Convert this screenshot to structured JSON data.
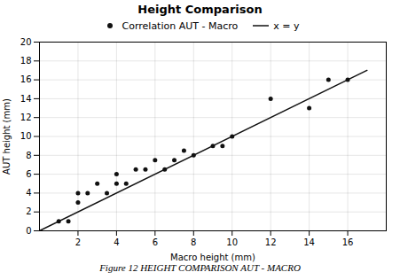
{
  "chart_data": {
    "type": "scatter",
    "title": "Height Comparison",
    "xlabel": "Macro height (mm)",
    "ylabel": "AUT height (mm)",
    "caption": "Figure 12   HEIGHT COMPARISON AUT - MACRO",
    "xlim": [
      0,
      18
    ],
    "ylim": [
      0.0,
      20.0
    ],
    "xticks": [
      2,
      4,
      6,
      8,
      10,
      12,
      14,
      16
    ],
    "yticks": [
      0,
      2,
      4,
      6,
      8,
      10,
      12,
      14,
      16,
      18,
      20
    ],
    "grid": true,
    "legend": "right",
    "series": [
      {
        "name": "Correlation AUT - Macro",
        "type": "scatter",
        "color": "#111111",
        "marker": "circle",
        "x": [
          1.0,
          1.5,
          2.0,
          2.0,
          2.5,
          3.0,
          3.5,
          4.0,
          4.0,
          4.5,
          5.0,
          5.5,
          6.0,
          6.5,
          7.0,
          7.5,
          8.0,
          9.0,
          9.5,
          10.0,
          12.0,
          14.0,
          15.0,
          16.0
        ],
        "values": [
          1.0,
          1.0,
          4.0,
          3.0,
          4.0,
          5.0,
          4.0,
          5.0,
          6.0,
          5.0,
          6.5,
          6.5,
          7.5,
          6.5,
          7.5,
          8.5,
          8.0,
          9.0,
          9.0,
          10.0,
          14.0,
          13.0,
          16.0,
          16.0
        ]
      },
      {
        "name": "x = y",
        "type": "line",
        "color": "#111111",
        "line_style": "solid",
        "x": [
          0,
          17
        ],
        "values": [
          0,
          17
        ]
      }
    ]
  }
}
